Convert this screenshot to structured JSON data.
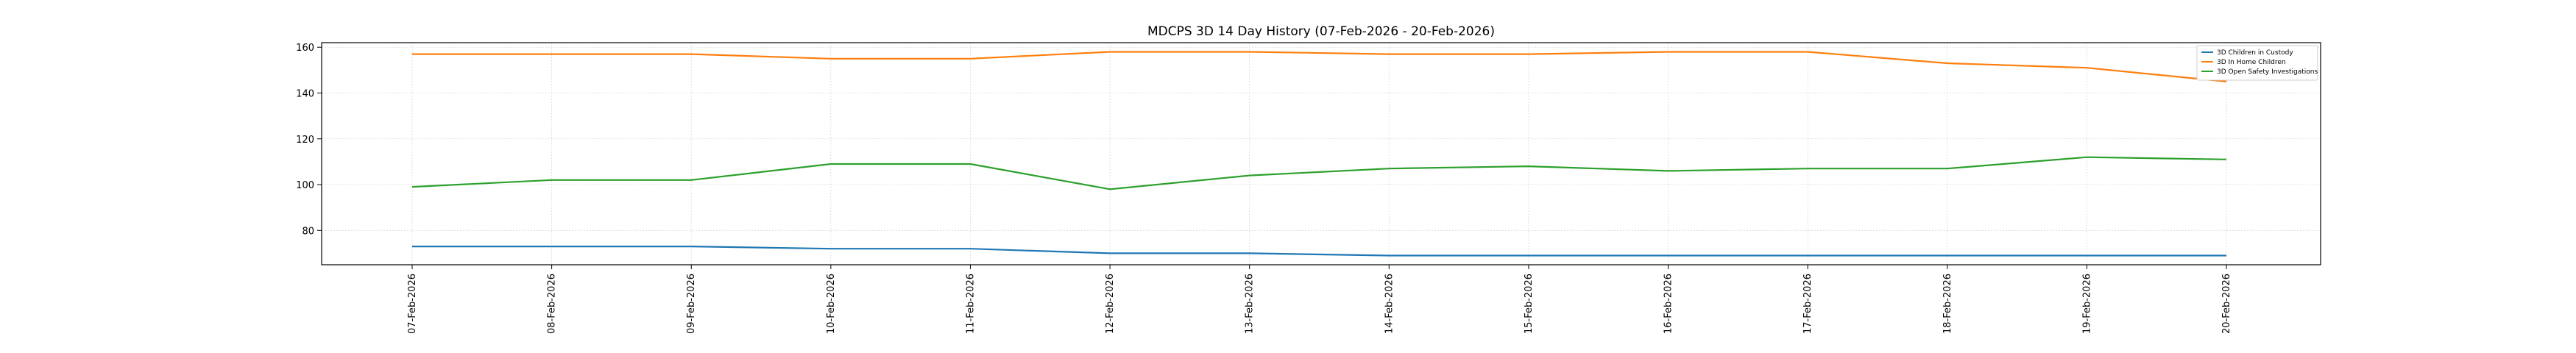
{
  "chart_data": {
    "type": "line",
    "title": "MDCPS 3D 14 Day History (07-Feb-2026 - 20-Feb-2026)",
    "xlabel": "",
    "ylabel": "",
    "categories": [
      "07-Feb-2026",
      "08-Feb-2026",
      "09-Feb-2026",
      "10-Feb-2026",
      "11-Feb-2026",
      "12-Feb-2026",
      "13-Feb-2026",
      "14-Feb-2026",
      "15-Feb-2026",
      "16-Feb-2026",
      "17-Feb-2026",
      "18-Feb-2026",
      "19-Feb-2026",
      "20-Feb-2026"
    ],
    "ylim": [
      65,
      162
    ],
    "yticks": [
      80,
      100,
      120,
      140,
      160
    ],
    "grid": true,
    "legend_position": "top-right",
    "series": [
      {
        "name": "3D Children in Custody",
        "color": "#1f77b4",
        "values": [
          73,
          73,
          73,
          72,
          72,
          70,
          70,
          69,
          69,
          69,
          69,
          69,
          69,
          69
        ]
      },
      {
        "name": "3D In Home Children",
        "color": "#ff7f0e",
        "values": [
          157,
          157,
          157,
          155,
          155,
          158,
          158,
          157,
          157,
          158,
          158,
          153,
          151,
          145
        ]
      },
      {
        "name": "3D Open Safety Investigations",
        "color": "#2ca02c",
        "values": [
          99,
          102,
          102,
          109,
          109,
          98,
          104,
          107,
          108,
          106,
          107,
          107,
          112,
          111
        ]
      }
    ]
  }
}
